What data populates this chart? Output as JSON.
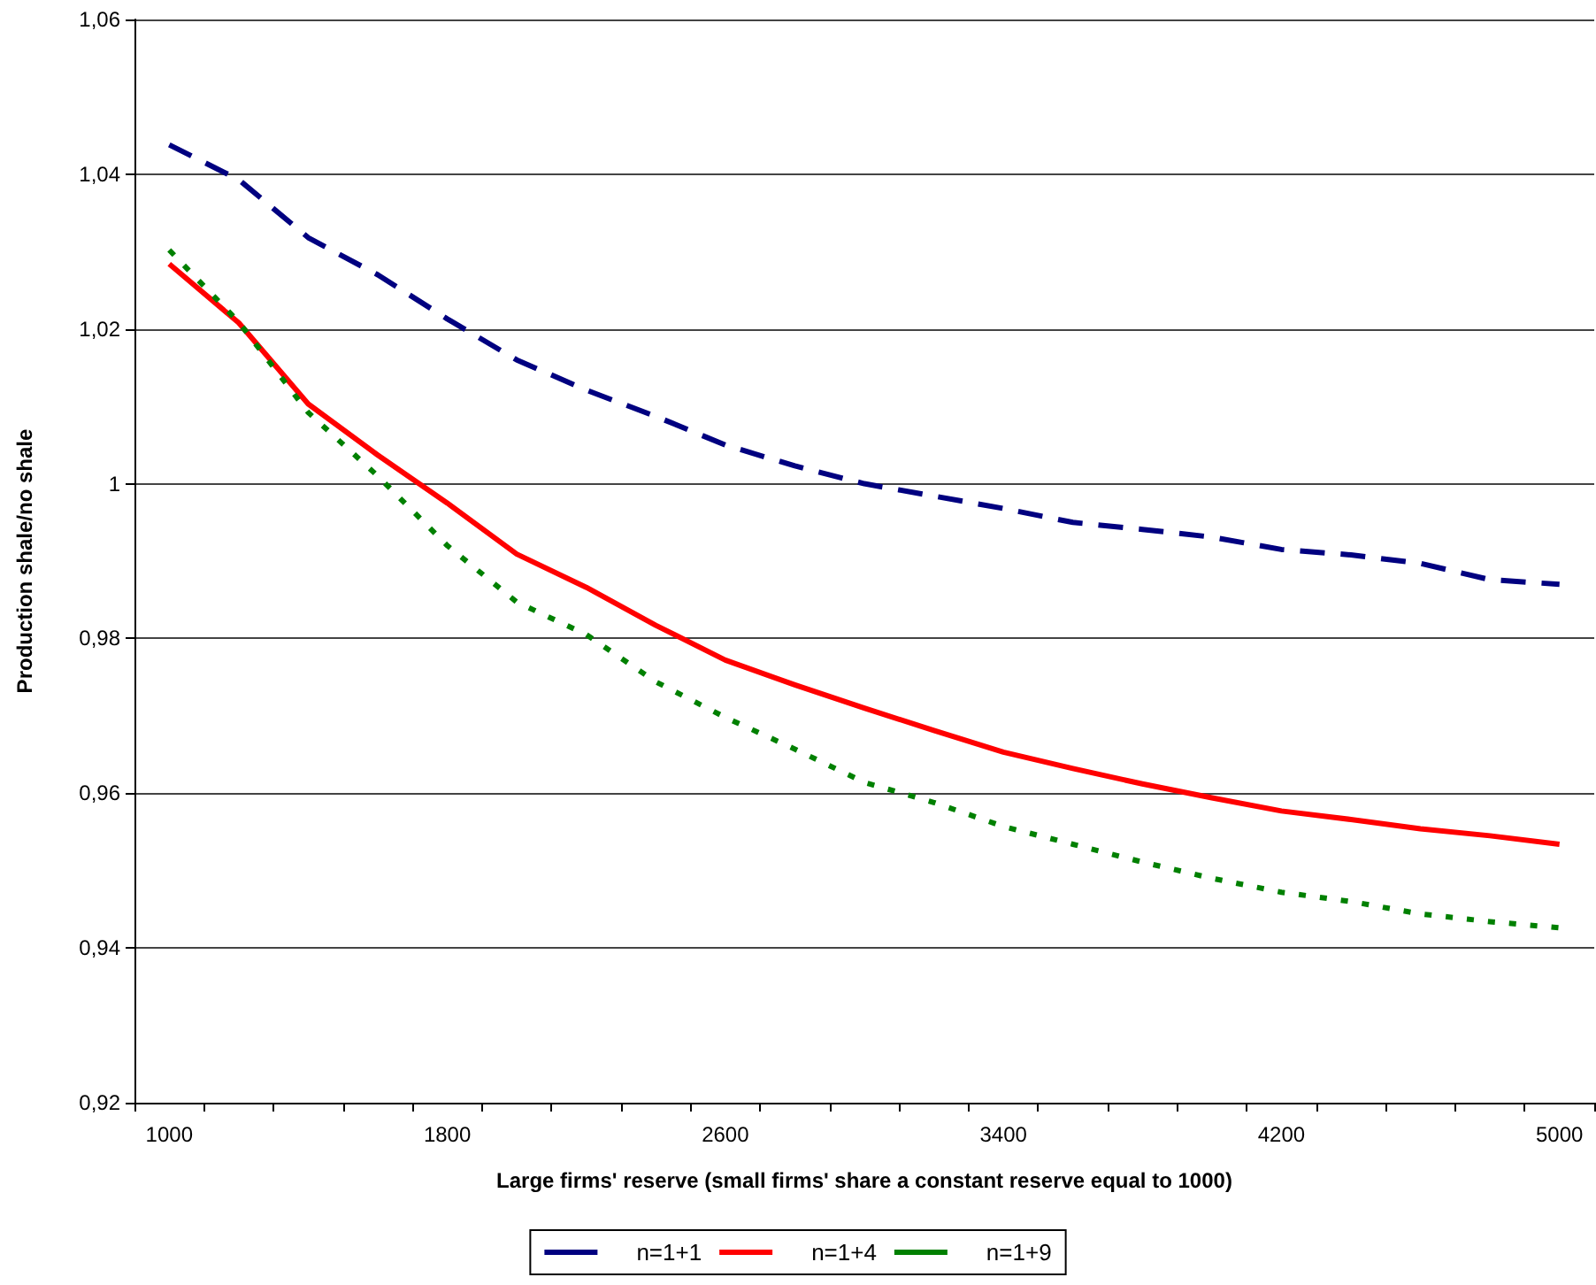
{
  "chart_data": {
    "type": "line",
    "xlabel": "Large firms' reserve (small firms' share a constant reserve equal to 1000)",
    "ylabel": "Production shale/no shale",
    "categories": [
      "1000",
      null,
      null,
      null,
      "1800",
      null,
      null,
      null,
      "2600",
      null,
      null,
      null,
      "3400",
      null,
      null,
      null,
      "4200",
      null,
      null,
      null,
      "5000"
    ],
    "series": [
      {
        "name": "n=1+1",
        "color": "#000080",
        "line_style": "dashed",
        "values": [
          1.0438,
          1.0393,
          1.0318,
          1.027,
          1.0213,
          1.016,
          1.0121,
          1.0087,
          1.005,
          1.0023,
          1.0,
          0.9984,
          0.9968,
          0.995,
          0.9941,
          0.9931,
          0.9915,
          0.9908,
          0.9897,
          0.9876,
          0.987
        ]
      },
      {
        "name": "n=1+4",
        "color": "#ff0000",
        "line_style": "solid",
        "values": [
          1.0284,
          1.0208,
          1.0103,
          1.0037,
          0.9975,
          0.9909,
          0.9866,
          0.9817,
          0.9772,
          0.974,
          0.971,
          0.9681,
          0.9653,
          0.9632,
          0.9612,
          0.9594,
          0.9577,
          0.9566,
          0.9554,
          0.9545,
          0.9534
        ]
      },
      {
        "name": "n=1+9",
        "color": "#008000",
        "line_style": "dotted",
        "values": [
          1.0302,
          1.0209,
          1.0092,
          1.001,
          0.992,
          0.9847,
          0.9805,
          0.9744,
          0.9698,
          0.9657,
          0.9614,
          0.9588,
          0.9557,
          0.9534,
          0.9511,
          0.949,
          0.9472,
          0.946,
          0.9444,
          0.9434,
          0.9426
        ]
      }
    ],
    "ylim": [
      0.92,
      1.06
    ],
    "yticks": [
      {
        "value": 0.92,
        "label": "0,92"
      },
      {
        "value": 0.94,
        "label": "0,94"
      },
      {
        "value": 0.96,
        "label": "0,96"
      },
      {
        "value": 0.98,
        "label": "0,98"
      },
      1,
      {
        "value": 1.02,
        "label": "1,02"
      },
      {
        "value": 1.04,
        "label": "1,04"
      },
      {
        "value": 1.06,
        "label": "1,06"
      }
    ],
    "grid": "y",
    "legend": "bottom",
    "marker": "none"
  }
}
